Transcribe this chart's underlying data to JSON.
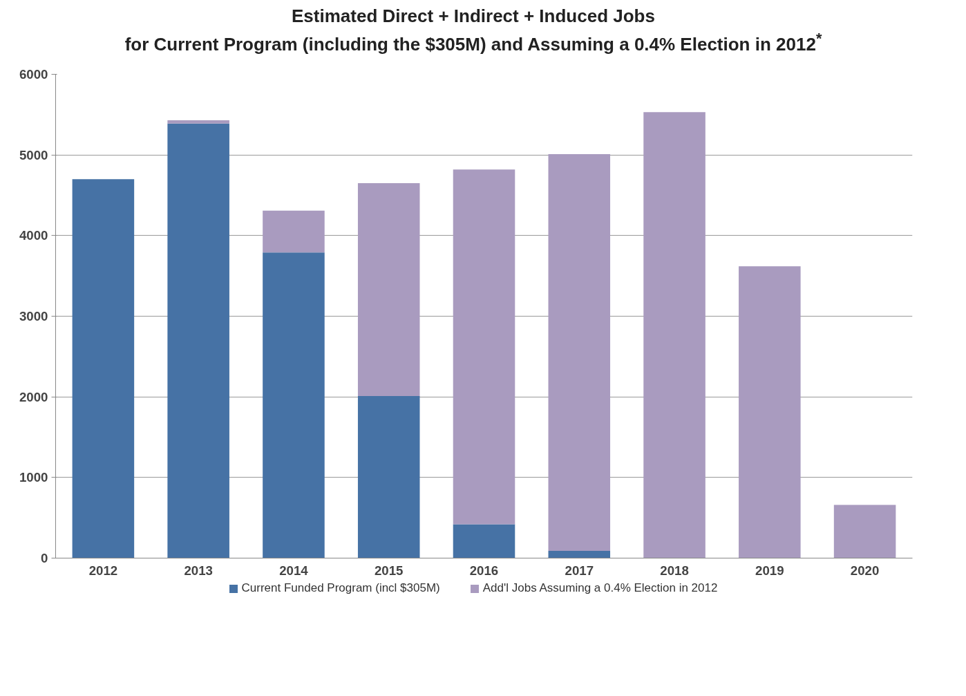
{
  "chart_data": {
    "type": "bar",
    "stacked": true,
    "title": "Estimated Direct + Indirect + Induced Jobs\nfor Current Program (including the $305M) and Assuming a 0.4% Election in 2012$^{*}$",
    "categories": [
      "2012",
      "2013",
      "2014",
      "2015",
      "2016",
      "2017",
      "2018",
      "2019",
      "2020"
    ],
    "series": [
      {
        "name": "Current Funded Program (incl $305M)",
        "color": "#4672a5",
        "values": [
          4700,
          5390,
          3790,
          2010,
          420,
          90,
          0,
          0,
          0
        ]
      },
      {
        "name": "Add'l Jobs Assuming a 0.4% Election in 2012",
        "color": "#a99bbf",
        "values": [
          0,
          40,
          520,
          2640,
          4400,
          4920,
          5530,
          3620,
          660
        ]
      }
    ],
    "ylim": [
      0,
      6000
    ],
    "yticks": [
      0,
      1000,
      2000,
      3000,
      4000,
      5000,
      6000
    ],
    "grid": "y",
    "legend": "bottom"
  }
}
